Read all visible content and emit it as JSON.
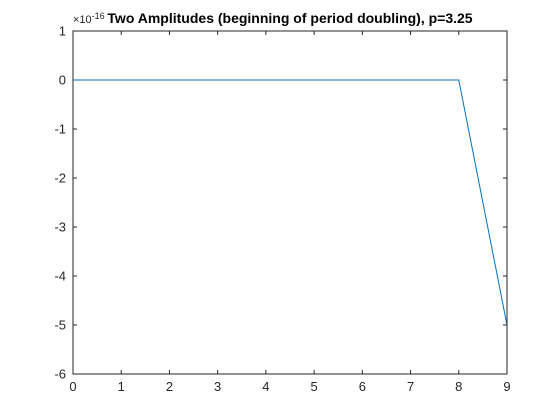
{
  "chart_data": {
    "type": "line",
    "title": "Two Amplitudes (beginning of period doubling), p=3.25",
    "xlabel": "",
    "ylabel": "",
    "x": [
      0,
      1,
      2,
      3,
      4,
      5,
      6,
      7,
      8,
      9
    ],
    "series": [
      {
        "values": [
          0,
          0,
          0,
          0,
          0,
          0,
          0,
          0,
          0,
          -5
        ],
        "color": "#0072BD"
      }
    ],
    "xlim": [
      0,
      9
    ],
    "ylim": [
      -6,
      1
    ],
    "x_ticks": [
      0,
      1,
      2,
      3,
      4,
      5,
      6,
      7,
      8,
      9
    ],
    "x_tick_labels": [
      "0",
      "1",
      "2",
      "3",
      "4",
      "5",
      "6",
      "7",
      "8",
      "9"
    ],
    "y_ticks": [
      1,
      0,
      -1,
      -2,
      -3,
      -4,
      -5,
      -6
    ],
    "y_tick_labels": [
      "1",
      "0",
      "-1",
      "-2",
      "-3",
      "-4",
      "-5",
      "-6"
    ],
    "y_exponent_base": "×10",
    "y_exponent_power": "-16",
    "grid": false,
    "box": true
  }
}
